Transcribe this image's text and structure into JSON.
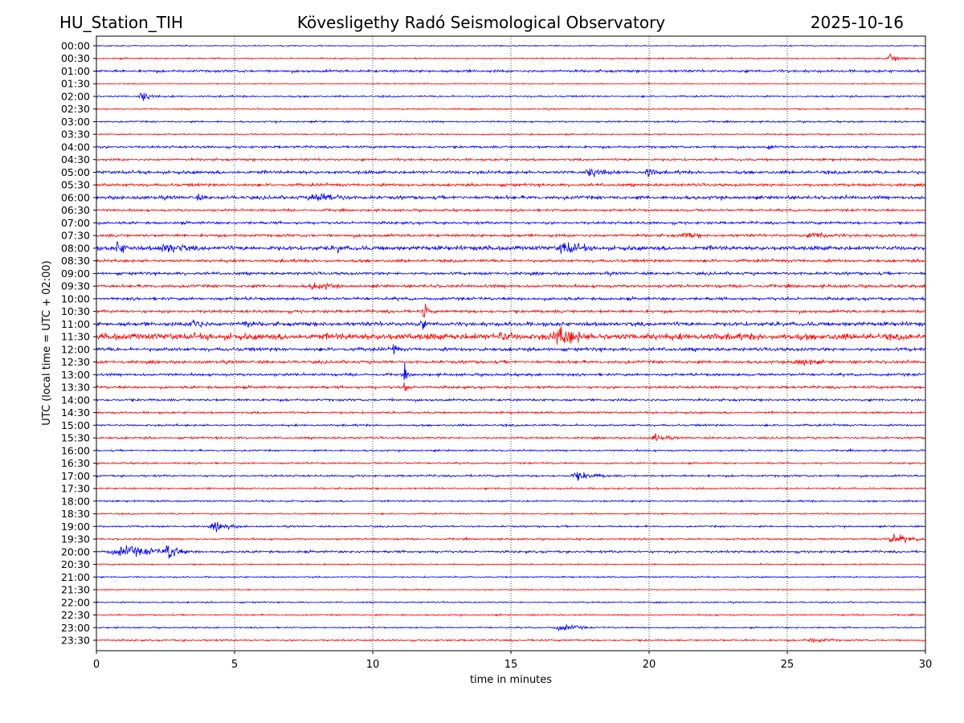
{
  "header": {
    "station": "HU_Station_TIH",
    "observatory": "Kövesligethy Radó Seismological Observatory",
    "date": "2025-10-16"
  },
  "chart_data": {
    "type": "line",
    "title": "Kövesligethy Radó Seismological Observatory",
    "xlabel": "time in minutes",
    "ylabel": "UTC (local time = UTC + 02:00)",
    "xlim": [
      0,
      30
    ],
    "xticks": [
      "0",
      "5",
      "10",
      "15",
      "20",
      "25",
      "30"
    ],
    "grid": "vertical dotted lines at x ticks",
    "colors": {
      "even_rows": "#0000ff",
      "odd_rows": "#ff0000"
    },
    "rows": [
      "00:00",
      "00:30",
      "01:00",
      "01:30",
      "02:00",
      "02:30",
      "03:00",
      "03:30",
      "04:00",
      "04:30",
      "05:00",
      "05:30",
      "06:00",
      "06:30",
      "07:00",
      "07:30",
      "08:00",
      "08:30",
      "09:00",
      "09:30",
      "10:00",
      "10:30",
      "11:00",
      "11:30",
      "12:00",
      "12:30",
      "13:00",
      "13:30",
      "14:00",
      "14:30",
      "15:00",
      "15:30",
      "16:00",
      "16:30",
      "17:00",
      "17:30",
      "18:00",
      "18:30",
      "19:00",
      "19:30",
      "20:00",
      "20:30",
      "21:00",
      "21:30",
      "22:00",
      "22:30",
      "23:00",
      "23:30"
    ],
    "noise_level": [
      0.4,
      0.5,
      0.9,
      0.4,
      0.6,
      0.5,
      0.6,
      0.5,
      0.8,
      0.8,
      1.1,
      1.0,
      1.2,
      0.8,
      0.9,
      1.0,
      1.5,
      1.0,
      1.0,
      1.0,
      1.0,
      1.0,
      1.4,
      2.2,
      1.2,
      1.0,
      0.9,
      0.9,
      0.8,
      0.7,
      0.7,
      0.7,
      0.6,
      0.6,
      0.7,
      0.6,
      0.6,
      0.5,
      0.6,
      0.6,
      0.8,
      0.5,
      0.5,
      0.4,
      0.5,
      0.5,
      0.5,
      0.6
    ],
    "events": [
      {
        "row": "00:30",
        "start": 28.5,
        "end": 29.6,
        "amp": 3
      },
      {
        "row": "02:00",
        "start": 1.5,
        "end": 2.3,
        "amp": 4
      },
      {
        "row": "04:00",
        "start": 24.2,
        "end": 24.6,
        "amp": 2.5
      },
      {
        "row": "05:00",
        "start": 17.6,
        "end": 19.0,
        "amp": 4
      },
      {
        "row": "05:00",
        "start": 19.8,
        "end": 20.6,
        "amp": 3.5
      },
      {
        "row": "06:00",
        "start": 3.5,
        "end": 4.2,
        "amp": 3
      },
      {
        "row": "06:00",
        "start": 7.5,
        "end": 9.8,
        "amp": 4
      },
      {
        "row": "07:30",
        "start": 21.0,
        "end": 22.5,
        "amp": 2.5
      },
      {
        "row": "07:30",
        "start": 25.5,
        "end": 28.0,
        "amp": 2.5
      },
      {
        "row": "08:00",
        "start": 0.6,
        "end": 1.3,
        "amp": 6
      },
      {
        "row": "08:00",
        "start": 2.0,
        "end": 4.6,
        "amp": 4
      },
      {
        "row": "08:00",
        "start": 8.7,
        "end": 9.0,
        "amp": 5
      },
      {
        "row": "08:00",
        "start": 16.5,
        "end": 18.5,
        "amp": 5
      },
      {
        "row": "09:30",
        "start": 7.5,
        "end": 9.5,
        "amp": 3
      },
      {
        "row": "10:30",
        "start": 11.8,
        "end": 12.1,
        "amp": 7
      },
      {
        "row": "11:00",
        "start": 3.3,
        "end": 4.3,
        "amp": 5
      },
      {
        "row": "11:00",
        "start": 5.2,
        "end": 5.9,
        "amp": 4
      },
      {
        "row": "11:00",
        "start": 11.7,
        "end": 12.0,
        "amp": 6
      },
      {
        "row": "11:30",
        "start": 14.4,
        "end": 15.6,
        "amp": 4.5
      },
      {
        "row": "11:30",
        "start": 16.3,
        "end": 18.6,
        "amp": 7
      },
      {
        "row": "12:00",
        "start": 10.7,
        "end": 11.0,
        "amp": 6
      },
      {
        "row": "12:30",
        "start": 25.0,
        "end": 27.0,
        "amp": 3
      },
      {
        "row": "13:00",
        "start": 11.1,
        "end": 11.35,
        "amp": 6
      },
      {
        "row": "13:30",
        "start": 11.1,
        "end": 11.4,
        "amp": 6
      },
      {
        "row": "15:30",
        "start": 20.0,
        "end": 21.2,
        "amp": 3
      },
      {
        "row": "17:00",
        "start": 17.0,
        "end": 19.0,
        "amp": 3
      },
      {
        "row": "19:00",
        "start": 4.0,
        "end": 5.6,
        "amp": 3
      },
      {
        "row": "19:30",
        "start": 28.5,
        "end": 30.0,
        "amp": 4
      },
      {
        "row": "20:00",
        "start": 0.2,
        "end": 4.0,
        "amp": 4
      },
      {
        "row": "20:00",
        "start": 2.4,
        "end": 3.3,
        "amp": 7
      },
      {
        "row": "23:00",
        "start": 16.5,
        "end": 18.0,
        "amp": 3
      },
      {
        "row": "23:30",
        "start": 25.5,
        "end": 27.2,
        "amp": 2
      }
    ]
  }
}
